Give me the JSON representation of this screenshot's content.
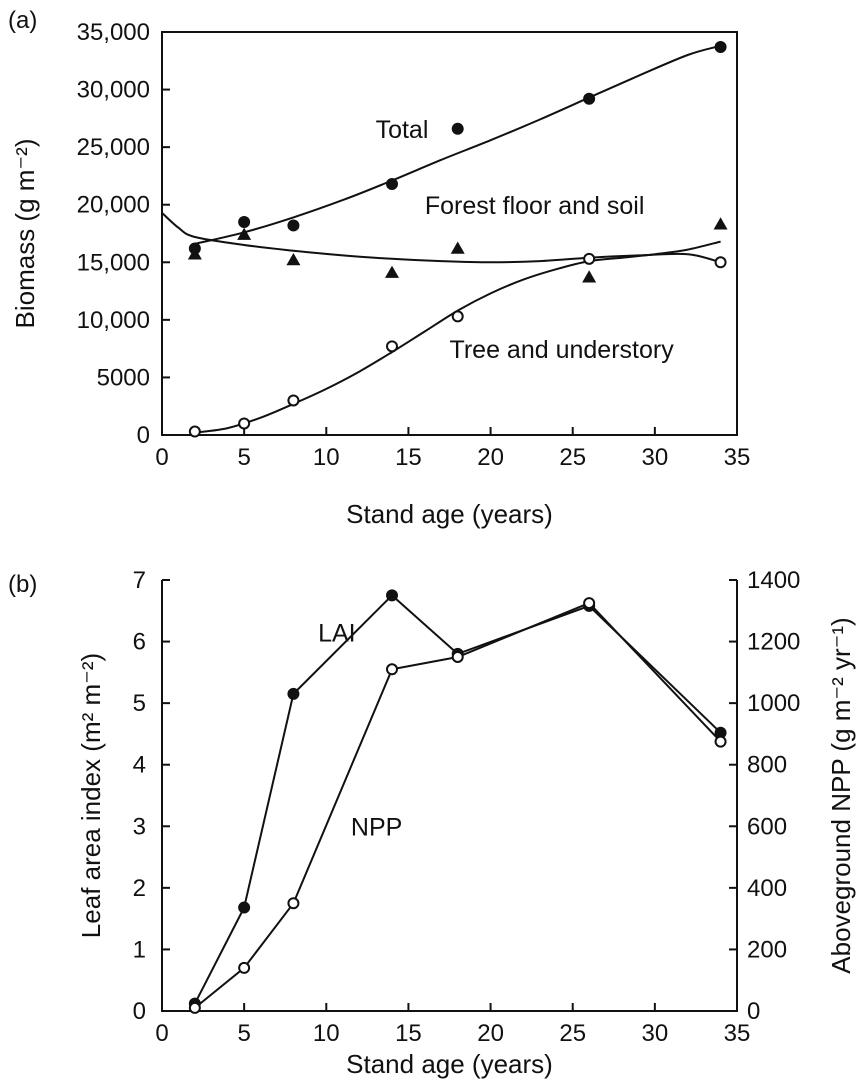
{
  "chart_data": [
    {
      "panel_label": "(a)",
      "type": "scatter",
      "xlabel": "Stand age (years)",
      "ylabel": "Biomass (g m⁻²)",
      "xlim": [
        0,
        35
      ],
      "ylim": [
        0,
        35000
      ],
      "xticks": [
        {
          "value": 0,
          "label": "0"
        },
        {
          "value": 5,
          "label": "5"
        },
        {
          "value": 10,
          "label": "10"
        },
        {
          "value": 15,
          "label": "15"
        },
        {
          "value": 20,
          "label": "20"
        },
        {
          "value": 25,
          "label": "25"
        },
        {
          "value": 30,
          "label": "30"
        },
        {
          "value": 35,
          "label": "35"
        }
      ],
      "yticks": [
        {
          "value": 0,
          "label": "0"
        },
        {
          "value": 5000,
          "label": "5000"
        },
        {
          "value": 10000,
          "label": "10,000"
        },
        {
          "value": 15000,
          "label": "15,000"
        },
        {
          "value": 20000,
          "label": "20,000"
        },
        {
          "value": 25000,
          "label": "25,000"
        },
        {
          "value": 30000,
          "label": "30,000"
        },
        {
          "value": 35000,
          "label": "35,000"
        }
      ],
      "grid": false,
      "series": [
        {
          "name": "Total",
          "marker": "filled-circle",
          "points": [
            [
              2,
              16200
            ],
            [
              5,
              18500
            ],
            [
              8,
              18200
            ],
            [
              14,
              21800
            ],
            [
              18,
              26600
            ],
            [
              26,
              29200
            ],
            [
              34,
              33700
            ]
          ],
          "fit": [
            [
              2,
              16600
            ],
            [
              5,
              17600
            ],
            [
              8,
              18900
            ],
            [
              11,
              20400
            ],
            [
              14,
              22100
            ],
            [
              17,
              23900
            ],
            [
              20,
              25600
            ],
            [
              23,
              27400
            ],
            [
              26,
              29300
            ],
            [
              29,
              31200
            ],
            [
              32,
              33000
            ],
            [
              34,
              33800
            ]
          ]
        },
        {
          "name": "Forest floor and soil",
          "marker": "filled-triangle",
          "points": [
            [
              2,
              15700
            ],
            [
              5,
              17400
            ],
            [
              8,
              15200
            ],
            [
              14,
              14100
            ],
            [
              18,
              16200
            ],
            [
              26,
              13700
            ],
            [
              34,
              18300
            ]
          ],
          "fit": [
            [
              0,
              19300
            ],
            [
              1,
              18000
            ],
            [
              2,
              17200
            ],
            [
              5,
              16500
            ],
            [
              8,
              16000
            ],
            [
              11,
              15600
            ],
            [
              14,
              15300
            ],
            [
              17,
              15100
            ],
            [
              20,
              15000
            ],
            [
              23,
              15100
            ],
            [
              26,
              15400
            ],
            [
              29,
              15600
            ],
            [
              32,
              15700
            ],
            [
              34,
              15000
            ]
          ]
        },
        {
          "name": "Tree and understory",
          "marker": "open-circle",
          "points": [
            [
              2,
              300
            ],
            [
              5,
              1000
            ],
            [
              8,
              3000
            ],
            [
              14,
              7700
            ],
            [
              18,
              10300
            ],
            [
              26,
              15300
            ],
            [
              34,
              15000
            ]
          ],
          "fit": [
            [
              2,
              200
            ],
            [
              4,
              600
            ],
            [
              6,
              1500
            ],
            [
              8,
              2700
            ],
            [
              10,
              4000
            ],
            [
              12,
              5500
            ],
            [
              14,
              7200
            ],
            [
              16,
              9000
            ],
            [
              18,
              10800
            ],
            [
              20,
              12300
            ],
            [
              22,
              13500
            ],
            [
              24,
              14400
            ],
            [
              26,
              15100
            ],
            [
              28,
              15400
            ],
            [
              30,
              15700
            ],
            [
              32,
              16100
            ],
            [
              34,
              16800
            ]
          ]
        }
      ],
      "annotations": [
        {
          "text": "Total",
          "x": 13,
          "y": 25800
        },
        {
          "text": "Forest floor and soil",
          "x": 16,
          "y": 19200
        },
        {
          "text": "Tree and understory",
          "x": 17.5,
          "y": 6700
        }
      ]
    },
    {
      "panel_label": "(b)",
      "type": "line",
      "xlabel": "Stand age (years)",
      "ylabel_left": "Leaf area index (m² m⁻²)",
      "ylabel_right": "Aboveground NPP (g m⁻² yr⁻¹)",
      "xlim": [
        0,
        35
      ],
      "ylim_left": [
        0,
        7
      ],
      "ylim_right": [
        0,
        1400
      ],
      "xticks": [
        {
          "value": 0,
          "label": "0"
        },
        {
          "value": 5,
          "label": "5"
        },
        {
          "value": 10,
          "label": "10"
        },
        {
          "value": 15,
          "label": "15"
        },
        {
          "value": 20,
          "label": "20"
        },
        {
          "value": 25,
          "label": "25"
        },
        {
          "value": 30,
          "label": "30"
        },
        {
          "value": 35,
          "label": "35"
        }
      ],
      "yticks_left": [
        {
          "value": 0,
          "label": "0"
        },
        {
          "value": 1,
          "label": "1"
        },
        {
          "value": 2,
          "label": "2"
        },
        {
          "value": 3,
          "label": "3"
        },
        {
          "value": 4,
          "label": "4"
        },
        {
          "value": 5,
          "label": "5"
        },
        {
          "value": 6,
          "label": "6"
        },
        {
          "value": 7,
          "label": "7"
        }
      ],
      "yticks_right": [
        {
          "value": 0,
          "label": "0"
        },
        {
          "value": 200,
          "label": "200"
        },
        {
          "value": 400,
          "label": "400"
        },
        {
          "value": 600,
          "label": "600"
        },
        {
          "value": 800,
          "label": "800"
        },
        {
          "value": 1000,
          "label": "1000"
        },
        {
          "value": 1200,
          "label": "1200"
        },
        {
          "value": 1400,
          "label": "1400"
        }
      ],
      "grid": false,
      "series": [
        {
          "name": "LAI",
          "axis": "left",
          "marker": "filled-circle",
          "x": [
            2,
            5,
            8,
            14,
            18,
            26,
            34
          ],
          "values": [
            0.12,
            1.68,
            5.15,
            6.75,
            5.8,
            6.58,
            4.52
          ]
        },
        {
          "name": "NPP",
          "axis": "right",
          "marker": "open-circle",
          "x": [
            2,
            5,
            8,
            14,
            18,
            26,
            34
          ],
          "values": [
            10,
            140,
            350,
            1110,
            1150,
            1325,
            875
          ]
        }
      ],
      "annotations": [
        {
          "text": "LAI",
          "x": 9.5,
          "y": 6.0
        },
        {
          "text": "NPP",
          "x": 11.5,
          "y": 2.85
        }
      ]
    }
  ]
}
